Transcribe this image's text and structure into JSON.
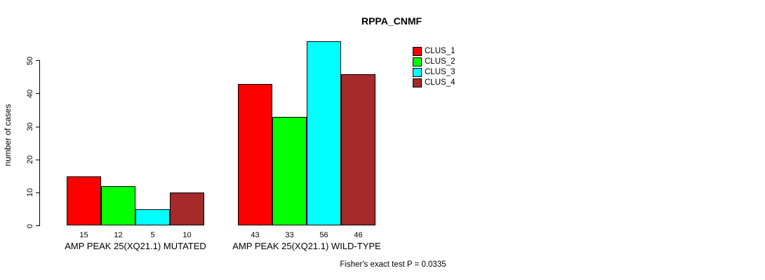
{
  "title": "RPPA_CNMF",
  "footer_note": "Fisher's exact test P = 0.0335",
  "chart_data": {
    "type": "bar",
    "title": "RPPA_CNMF",
    "xlabel": "",
    "ylabel": "number of cases",
    "ylim": [
      0,
      56
    ],
    "yticks": [
      0,
      10,
      20,
      30,
      40,
      50
    ],
    "grid": false,
    "legend_position": "top-right",
    "categories": [
      "AMP PEAK 25(XQ21.1) MUTATED",
      "AMP PEAK 25(XQ21.1) WILD-TYPE"
    ],
    "series": [
      {
        "name": "CLUS_1",
        "color": "#ff0000",
        "values": [
          15,
          43
        ]
      },
      {
        "name": "CLUS_2",
        "color": "#00ff00",
        "values": [
          12,
          33
        ]
      },
      {
        "name": "CLUS_3",
        "color": "#00ffff",
        "values": [
          5,
          56
        ]
      },
      {
        "name": "CLUS_4",
        "color": "#a52a2a",
        "values": [
          10,
          46
        ]
      }
    ],
    "bar_value_labels": [
      [
        15,
        12,
        5,
        10
      ],
      [
        43,
        33,
        56,
        46
      ]
    ],
    "annotation": "Fisher's exact test P = 0.0335"
  },
  "legend": {
    "items": [
      {
        "label": "CLUS_1",
        "color": "#ff0000"
      },
      {
        "label": "CLUS_2",
        "color": "#00ff00"
      },
      {
        "label": "CLUS_3",
        "color": "#00ffff"
      },
      {
        "label": "CLUS_4",
        "color": "#a52a2a"
      }
    ]
  },
  "colors": {
    "axis": "#000000",
    "text": "#000000",
    "background": "#ffffff"
  }
}
